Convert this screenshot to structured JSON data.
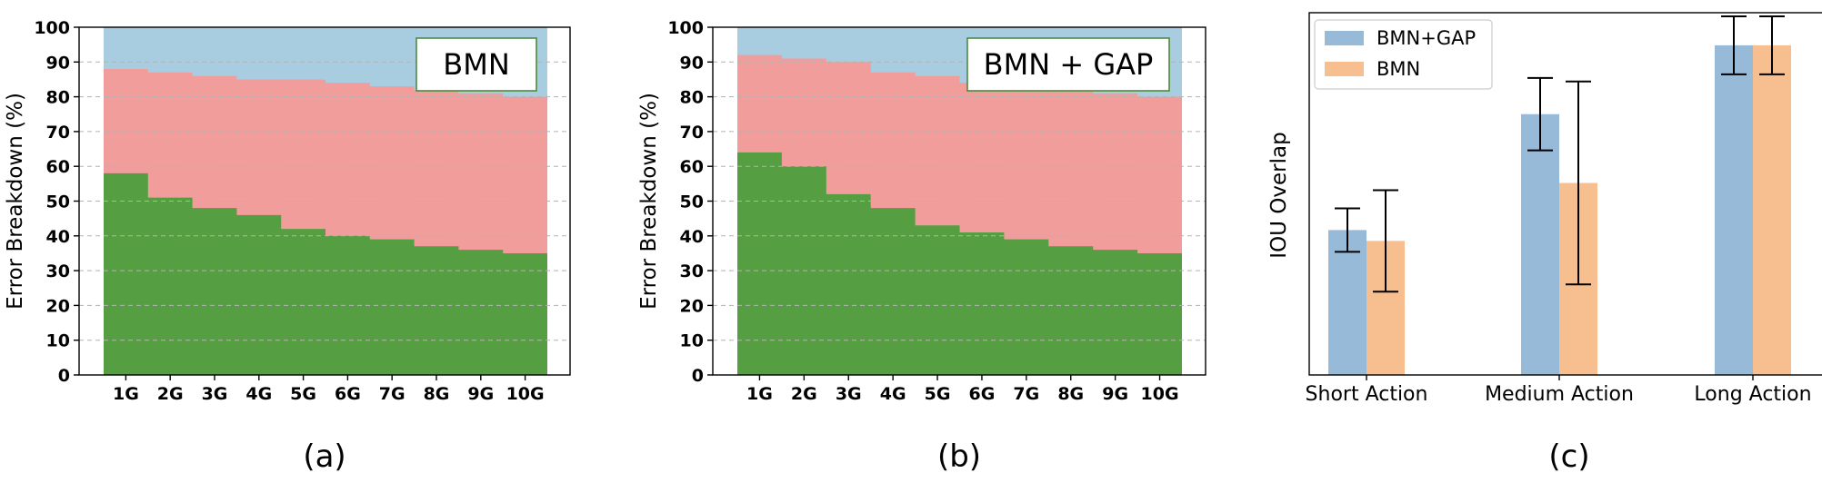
{
  "colors": {
    "blue_area": "#a9cde0",
    "red_area": "#f09d9b",
    "green_area": "#559e41",
    "bar_blue": "#97bad9",
    "bar_orange": "#f7be8f",
    "box_border": "#4e8a3a",
    "grid": "#b3b3b3"
  },
  "chart_data": [
    {
      "type": "area",
      "panel_label": "(a)",
      "title": "BMN",
      "ylabel": "Error Breakdown (%)",
      "ylim": [
        0,
        100
      ],
      "yticks": [
        0,
        10,
        20,
        30,
        40,
        50,
        60,
        70,
        80,
        90,
        100
      ],
      "categories": [
        "1G",
        "2G",
        "3G",
        "4G",
        "5G",
        "6G",
        "7G",
        "8G",
        "9G",
        "10G"
      ],
      "series": [
        {
          "color": "#559e41",
          "values": [
            58,
            51,
            48,
            46,
            42,
            40,
            39,
            37,
            36,
            35
          ]
        },
        {
          "color": "#f09d9b",
          "values": [
            88,
            87,
            86,
            85,
            85,
            84,
            83,
            82,
            81,
            80
          ]
        },
        {
          "color": "#a9cde0",
          "values": [
            100,
            100,
            100,
            100,
            100,
            100,
            100,
            100,
            100,
            100
          ]
        }
      ],
      "grid": true
    },
    {
      "type": "area",
      "panel_label": "(b)",
      "title": "BMN + GAP",
      "ylabel": "Error Breakdown (%)",
      "ylim": [
        0,
        100
      ],
      "yticks": [
        0,
        10,
        20,
        30,
        40,
        50,
        60,
        70,
        80,
        90,
        100
      ],
      "categories": [
        "1G",
        "2G",
        "3G",
        "4G",
        "5G",
        "6G",
        "7G",
        "8G",
        "9G",
        "10G"
      ],
      "series": [
        {
          "color": "#559e41",
          "values": [
            64,
            60,
            52,
            48,
            43,
            41,
            39,
            37,
            36,
            35
          ]
        },
        {
          "color": "#f09d9b",
          "values": [
            92,
            91,
            90,
            87,
            86,
            84,
            83,
            82,
            81,
            80
          ]
        },
        {
          "color": "#a9cde0",
          "values": [
            100,
            100,
            100,
            100,
            100,
            100,
            100,
            100,
            100,
            100
          ]
        }
      ],
      "grid": true
    },
    {
      "type": "bar",
      "panel_label": "(c)",
      "ylabel": "IOU Overlap",
      "ylim": [
        0,
        1
      ],
      "categories": [
        "Short Action",
        "Medium Action",
        "Long Action"
      ],
      "legend_position": "top-left",
      "series": [
        {
          "name": "BMN+GAP",
          "color": "#97bad9",
          "values": [
            0.4,
            0.72,
            0.91
          ],
          "errors": [
            0.06,
            0.1,
            0.08
          ]
        },
        {
          "name": "BMN",
          "color": "#f7be8f",
          "values": [
            0.37,
            0.53,
            0.91
          ],
          "errors": [
            0.14,
            0.28,
            0.08
          ]
        }
      ]
    }
  ]
}
